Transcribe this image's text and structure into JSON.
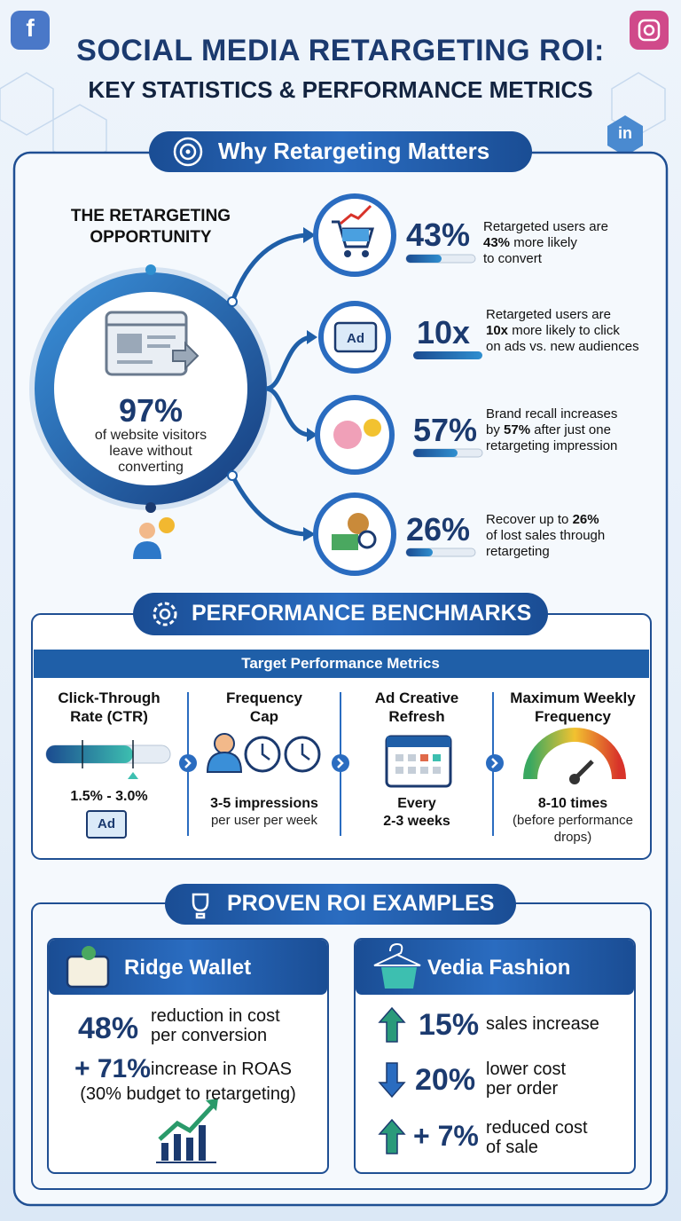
{
  "header": {
    "title_line1": "SOCIAL MEDIA RETARGETING ROI:",
    "title_line2": "KEY STATISTICS & PERFORMANCE METRICS"
  },
  "social_icons": {
    "facebook": "f",
    "linkedin": "in"
  },
  "why": {
    "heading": "Why Retargeting Matters",
    "opportunity_title": [
      "THE RETARGETING",
      "OPPORTUNITY"
    ],
    "hero_value": "97%",
    "hero_caption": [
      "of website visitors",
      "leave without",
      "converting"
    ],
    "stats": [
      {
        "value": "43%",
        "text": [
          [
            "Retargeted users are"
          ],
          [
            "",
            "43%",
            " more likely"
          ],
          [
            "to convert"
          ]
        ]
      },
      {
        "value": "10x",
        "text": [
          [
            "Retargeted users are"
          ],
          [
            "",
            "10x",
            " more likely to click"
          ],
          [
            "on ads vs. new audiences"
          ]
        ]
      },
      {
        "value": "57%",
        "text": [
          [
            "Brand recall increases"
          ],
          [
            "by ",
            "57%",
            " after just one"
          ],
          [
            "retargeting impression"
          ]
        ]
      },
      {
        "value": "26%",
        "text": [
          [
            "Recover up to ",
            "26%"
          ],
          [
            "of lost sales through"
          ],
          [
            "retargeting"
          ]
        ]
      }
    ]
  },
  "ad_icon_label": "Ad",
  "benchmarks": {
    "heading": "PERFORMANCE BENCHMARKS",
    "subheading": "Target Performance Metrics",
    "items": [
      {
        "title": [
          "Click-Through",
          "Rate (CTR)"
        ],
        "value": [
          "1.5% - 3.0%"
        ]
      },
      {
        "title": [
          "Frequency",
          "Cap"
        ],
        "value": [
          "3-5 impressions"
        ],
        "note": [
          "per user per week"
        ]
      },
      {
        "title": [
          "Ad Creative",
          "Refresh"
        ],
        "value": [
          "Every",
          "2-3 weeks"
        ]
      },
      {
        "title": [
          "Maximum Weekly",
          "Frequency"
        ],
        "value": [
          "8-10 times"
        ],
        "note": [
          "(before performance",
          "drops)"
        ]
      }
    ]
  },
  "roi": {
    "heading": "PROVEN ROI EXAMPLES",
    "cases": [
      {
        "name": "Ridge Wallet",
        "rows": [
          {
            "value": "48%",
            "text": [
              "reduction in cost",
              "per conversion"
            ]
          },
          {
            "value": "+ 71%",
            "text": [
              "increase in ROAS"
            ]
          }
        ],
        "note": "(30% budget to retargeting)"
      },
      {
        "name": "Vedia Fashion",
        "rows": [
          {
            "value": "15%",
            "text": [
              "sales increase"
            ],
            "direction": "up"
          },
          {
            "value": "20%",
            "text": [
              "lower cost",
              "per order"
            ],
            "direction": "down"
          },
          {
            "value": "+ 7%",
            "text": [
              "reduced cost",
              "of sale"
            ],
            "direction": "up"
          }
        ]
      }
    ]
  }
}
